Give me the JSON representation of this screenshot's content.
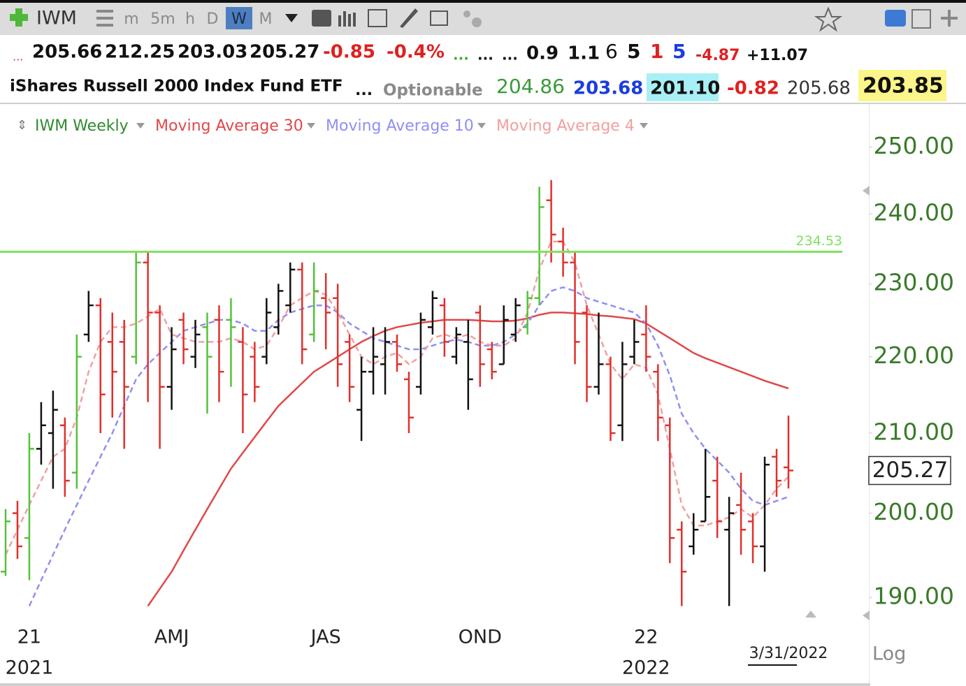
{
  "toolbar": {
    "symbol": "IWM",
    "timeframes": [
      "m",
      "5m",
      "h",
      "D",
      "W",
      "M"
    ]
  },
  "quote": {
    "lead": "...",
    "change": "-0.85",
    "change_pct": "-0.4%",
    "rest": [
      "...",
      "...",
      "...",
      "0.9",
      "1.1",
      "6",
      "5",
      "1",
      "5",
      "-4.87",
      "+11.07"
    ],
    "name": "iShares Russell 2000 Index Fund ETF",
    "row2": [
      "...",
      "Optionable",
      "204.86",
      "203.68",
      "201.10",
      "-0.82",
      "205.68",
      "203.85"
    ]
  },
  "chart_data": {
    "type": "ohlc",
    "price_name": "IWM Weekly",
    "price_color": "#2f8a2f",
    "log": true,
    "categories": [
      null,
      null,
      "21",
      null,
      null,
      null,
      null,
      null,
      null,
      null,
      null,
      null,
      null,
      null,
      "AMJ",
      null,
      null,
      null,
      null,
      null,
      null,
      null,
      null,
      null,
      null,
      null,
      null,
      "JAS",
      null,
      null,
      null,
      null,
      null,
      null,
      null,
      null,
      null,
      null,
      null,
      null,
      "OND",
      null,
      null,
      null,
      null,
      null,
      null,
      null,
      null,
      null,
      null,
      null,
      null,
      null,
      "22",
      null,
      null,
      null,
      null,
      null,
      null,
      null,
      null,
      null,
      null,
      null,
      null
    ],
    "year_labels": [
      null,
      null,
      "2021",
      null,
      null,
      null,
      null,
      null,
      null,
      null,
      null,
      null,
      null,
      null,
      null,
      null,
      null,
      null,
      null,
      null,
      null,
      null,
      null,
      null,
      null,
      null,
      null,
      null,
      null,
      null,
      null,
      null,
      null,
      null,
      null,
      null,
      null,
      null,
      null,
      null,
      null,
      null,
      null,
      null,
      null,
      null,
      null,
      null,
      null,
      null,
      null,
      null,
      null,
      null,
      "2022",
      null,
      null,
      null,
      null,
      null,
      null,
      null,
      null,
      null,
      null,
      null,
      null
    ],
    "open": [
      193,
      200,
      197,
      208,
      210,
      211,
      205,
      223,
      227,
      222,
      222,
      220,
      233,
      226,
      216,
      225,
      220,
      224,
      225,
      225,
      222,
      220,
      220,
      224,
      227,
      232,
      223,
      228,
      228,
      222,
      213,
      218,
      219,
      222,
      217,
      216,
      224,
      227,
      220,
      222,
      226,
      221,
      219,
      223,
      224,
      228,
      242,
      236,
      233,
      226,
      216,
      219,
      211,
      220,
      223,
      218,
      211,
      198,
      196,
      199,
      204,
      198,
      201,
      199,
      196,
      207,
      205.66
    ],
    "high": [
      200.5,
      201.5,
      210,
      214,
      215.5,
      212,
      223,
      229,
      228,
      226,
      225,
      234.5,
      234.5,
      227,
      224,
      226,
      225,
      226,
      227,
      228,
      224,
      222,
      228,
      230,
      233,
      233,
      233,
      231.5,
      230,
      223,
      220,
      224,
      224,
      223,
      218,
      226,
      229,
      228,
      224,
      225,
      227,
      222,
      227,
      228,
      229,
      244,
      245,
      238,
      234.5,
      227,
      226,
      220,
      222,
      225,
      227,
      219,
      212,
      199,
      200,
      208,
      207,
      202,
      205,
      200,
      207,
      208,
      212.25
    ],
    "low": [
      192.5,
      194.5,
      192,
      206,
      203,
      202,
      203,
      222,
      210,
      212,
      208,
      219,
      214,
      208,
      213,
      219,
      218.5,
      212.5,
      214,
      216,
      210,
      214,
      219,
      223,
      226,
      219,
      222,
      221,
      216,
      214,
      209,
      215,
      215,
      218,
      210,
      215,
      223,
      220,
      219,
      213,
      216,
      217,
      219,
      222,
      223,
      227,
      233,
      231,
      219,
      214,
      215,
      209,
      209,
      219,
      218,
      209,
      194,
      189,
      195,
      199,
      197,
      189,
      195,
      194,
      193,
      202,
      203.03
    ],
    "close": [
      199,
      196,
      208,
      211,
      213,
      204,
      220,
      227,
      215,
      218,
      216,
      233,
      226,
      216,
      221,
      221,
      223,
      220,
      218,
      224,
      215,
      216,
      226,
      229,
      232,
      221,
      229,
      226,
      219,
      216,
      218,
      220,
      222,
      219,
      212,
      225,
      228,
      222,
      223,
      217,
      219,
      218,
      225,
      227,
      228,
      241,
      237,
      233,
      222,
      216,
      219,
      210,
      219,
      222,
      220,
      212,
      197,
      193,
      198,
      202,
      199,
      200,
      198,
      196,
      206,
      204,
      205.27
    ],
    "bar_colors": [
      "#55c23a",
      "#e0302c",
      "#55c23a",
      "#111111",
      "#111111",
      "#e0302c",
      "#55c23a",
      "#111111",
      "#e0302c",
      "#e0302c",
      "#e0302c",
      "#55c23a",
      "#e0302c",
      "#e0302c",
      "#111111",
      "#e0302c",
      "#111111",
      "#55c23a",
      "#e0302c",
      "#55c23a",
      "#e0302c",
      "#e0302c",
      "#111111",
      "#111111",
      "#111111",
      "#e0302c",
      "#55c23a",
      "#e0302c",
      "#e0302c",
      "#e0302c",
      "#111111",
      "#111111",
      "#111111",
      "#e0302c",
      "#e0302c",
      "#111111",
      "#111111",
      "#e0302c",
      "#111111",
      "#111111",
      "#e0302c",
      "#e0302c",
      "#111111",
      "#111111",
      "#55c23a",
      "#55c23a",
      "#e0302c",
      "#e0302c",
      "#e0302c",
      "#e0302c",
      "#111111",
      "#e0302c",
      "#111111",
      "#111111",
      "#e0302c",
      "#e0302c",
      "#e0302c",
      "#e0302c",
      "#111111",
      "#111111",
      "#e0302c",
      "#111111",
      "#e0302c",
      "#e0302c",
      "#111111",
      "#e0302c",
      "#e0302c"
    ],
    "series": [
      {
        "name": "Moving Average 30",
        "color": "#e04848",
        "dashed": false,
        "values": [
          null,
          null,
          null,
          null,
          null,
          null,
          null,
          null,
          null,
          null,
          null,
          null,
          189,
          191,
          193,
          195.5,
          198,
          200.5,
          203,
          205.5,
          207.5,
          209.5,
          211.5,
          213.5,
          215,
          216.5,
          218,
          219,
          220,
          221,
          222,
          222.8,
          223.5,
          224,
          224.3,
          224.6,
          224.8,
          225,
          225,
          225,
          224.9,
          224.8,
          224.8,
          224.9,
          225.2,
          225.7,
          226,
          226,
          225.9,
          225.8,
          225.6,
          225.5,
          225.3,
          225.1,
          224.5,
          223.5,
          222.5,
          221.5,
          220.5,
          219.8,
          219.2,
          218.6,
          218,
          217.4,
          216.8,
          216.3,
          215.8
        ]
      },
      {
        "name": "Moving Average 10",
        "color": "#8f8ff5",
        "dashed": true,
        "values": [
          null,
          null,
          189,
          192,
          195,
          198,
          201,
          204,
          207,
          210,
          213.5,
          217,
          219,
          220.5,
          222,
          223.5,
          224,
          224.5,
          225,
          225,
          224.5,
          223.5,
          223.5,
          225,
          226,
          226.5,
          227,
          227,
          226,
          224.5,
          223.5,
          222.5,
          222,
          221.5,
          221,
          221,
          221.5,
          222,
          222.3,
          222,
          221.5,
          221.5,
          222,
          223,
          224.5,
          227,
          229,
          229.5,
          229,
          228,
          227.5,
          227,
          226.5,
          226,
          224.5,
          221.5,
          217.5,
          212.5,
          210,
          208,
          206.5,
          205,
          203,
          201.5,
          201,
          201.5,
          202
        ]
      },
      {
        "name": "Moving Average 4",
        "color": "#f0a0a0",
        "dashed": true,
        "values": [
          195,
          198,
          201,
          204,
          207,
          208,
          212,
          218,
          222,
          224,
          224,
          224.5,
          225.5,
          226.5,
          223,
          222.5,
          222,
          222,
          222,
          222.5,
          222,
          221,
          221.5,
          224,
          227,
          228,
          229,
          228.5,
          226,
          223,
          220,
          219,
          220,
          220.5,
          219,
          220,
          222.5,
          223,
          222.5,
          223,
          222,
          221.5,
          221.5,
          222.5,
          226,
          232,
          236,
          236,
          233,
          227,
          223,
          219,
          217,
          219,
          218.5,
          215,
          208,
          201,
          198.5,
          198.5,
          199,
          199.5,
          200.5,
          199.5,
          201,
          203,
          204.5
        ]
      }
    ],
    "hline": {
      "value": 234.53,
      "color": "#7ee05e"
    },
    "ylim": [
      188,
      256.5
    ],
    "yticks": [
      {
        "value": 190,
        "label": "190.00"
      },
      {
        "value": 200,
        "label": "200.00"
      },
      {
        "value": 210,
        "label": "210.00"
      },
      {
        "value": 220,
        "label": "220.00"
      },
      {
        "value": 230,
        "label": "230.00"
      },
      {
        "value": 240,
        "label": "240.00"
      },
      {
        "value": 250,
        "label": "250.00"
      }
    ],
    "date_label": "3/31/2022",
    "scale_label": "Log"
  }
}
